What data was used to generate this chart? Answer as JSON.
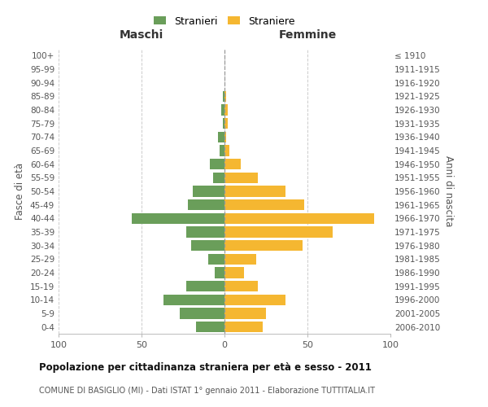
{
  "age_groups": [
    "0-4",
    "5-9",
    "10-14",
    "15-19",
    "20-24",
    "25-29",
    "30-34",
    "35-39",
    "40-44",
    "45-49",
    "50-54",
    "55-59",
    "60-64",
    "65-69",
    "70-74",
    "75-79",
    "80-84",
    "85-89",
    "90-94",
    "95-99",
    "100+"
  ],
  "birth_years": [
    "2006-2010",
    "2001-2005",
    "1996-2000",
    "1991-1995",
    "1986-1990",
    "1981-1985",
    "1976-1980",
    "1971-1975",
    "1966-1970",
    "1961-1965",
    "1956-1960",
    "1951-1955",
    "1946-1950",
    "1941-1945",
    "1936-1940",
    "1931-1935",
    "1926-1930",
    "1921-1925",
    "1916-1920",
    "1911-1915",
    "≤ 1910"
  ],
  "maschi": [
    17,
    27,
    37,
    23,
    6,
    10,
    20,
    23,
    56,
    22,
    19,
    7,
    9,
    3,
    4,
    1,
    2,
    1,
    0,
    0,
    0
  ],
  "femmine": [
    23,
    25,
    37,
    20,
    12,
    19,
    47,
    65,
    90,
    48,
    37,
    20,
    10,
    3,
    1,
    2,
    2,
    1,
    0,
    0,
    0
  ],
  "color_maschi": "#6a9e5a",
  "color_femmine": "#f5b731",
  "title": "Popolazione per cittadinanza straniera per età e sesso - 2011",
  "subtitle": "COMUNE DI BASIGLIO (MI) - Dati ISTAT 1° gennaio 2011 - Elaborazione TUTTITALIA.IT",
  "ylabel_left": "Fasce di età",
  "ylabel_right": "Anni di nascita",
  "xlabel_left": "Maschi",
  "xlabel_right": "Femmine",
  "legend_maschi": "Stranieri",
  "legend_femmine": "Straniere",
  "xlim": 100,
  "background_color": "#ffffff",
  "grid_color": "#cccccc"
}
